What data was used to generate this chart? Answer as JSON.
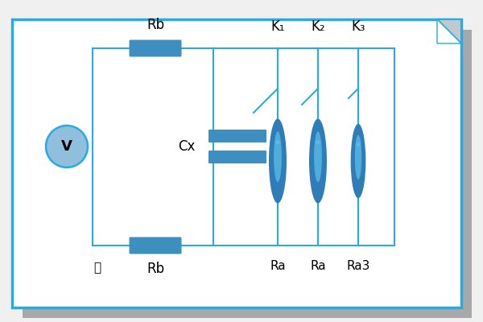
{
  "bg_color": "#f0f0f0",
  "card_color": "#ffffff",
  "border_color": "#29abe2",
  "shadow_color": "#a8a8a8",
  "circuit_color": "#29abe2",
  "component_color": "#3d8fc0",
  "voltmeter_color": "#90bedd",
  "ra_outer_color": "#2e7db8",
  "ra_inner_color": "#5bbde8",
  "labels": {
    "Rb_top": "Rb",
    "Rb_bot": "Rb",
    "Cx": "Cx",
    "K1": "K₁",
    "K2": "K₂",
    "K3": "K₃",
    "Ra1": "Ra",
    "Ra2": "Ra",
    "Ra3": "Ra3",
    "shi": "四",
    "V": "V"
  },
  "figsize": [
    6.0,
    4.0
  ],
  "dpi": 100
}
